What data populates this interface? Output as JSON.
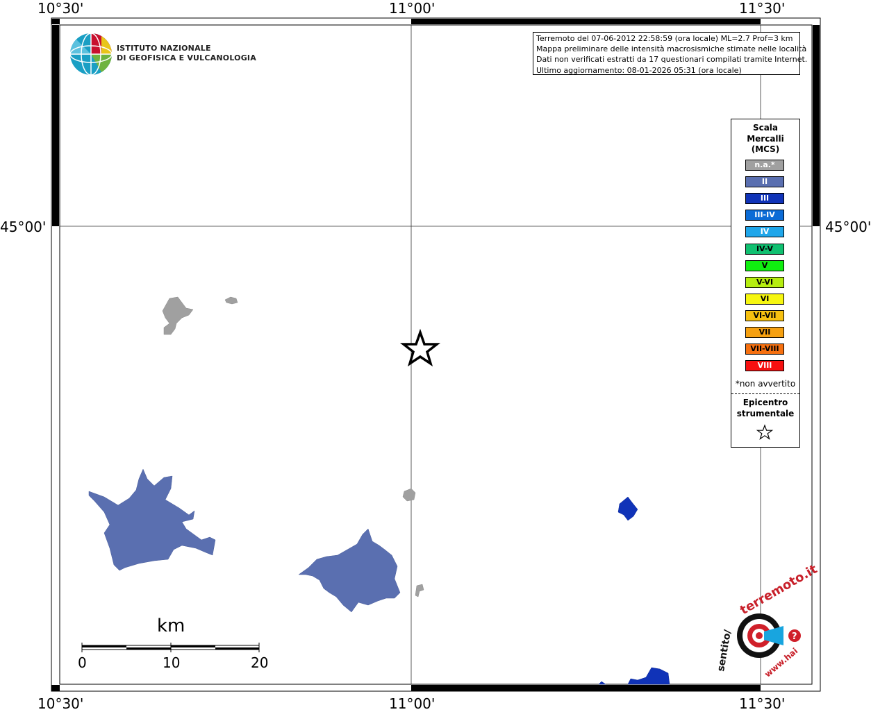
{
  "map": {
    "lon_ticks": [
      "10°30'",
      "11°00'",
      "11°30'"
    ],
    "lat_ticks": [
      "45°00'"
    ],
    "info_lines": [
      "Terremoto del 07-06-2012 22:58:59 (ora locale) ML=2.7 Prof=3 km",
      "Mappa preliminare delle intensità macrosismiche stimate nelle località",
      "Dati non verificati estratti da 17 questionari compilati tramite Internet.",
      "Ultimo aggiornamento: 08-01-2026 05:31 (ora locale)"
    ],
    "logo": {
      "line1": "ISTITUTO NAZIONALE",
      "line2": "DI GEOFISICA E VULCANOLOGIA"
    },
    "scale_bar": {
      "unit": "km",
      "labels": [
        "0",
        "10",
        "20"
      ]
    },
    "brand": {
      "main": "terremoto.it",
      "prefix": "sentito/",
      "www": "www.hai"
    }
  },
  "legend": {
    "title_lines": [
      "Scala",
      "Mercalli",
      "(MCS)"
    ],
    "classes": [
      {
        "label": "n.a.*",
        "color": "#a0a0a0"
      },
      {
        "label": "II",
        "color": "#5a6fb0"
      },
      {
        "label": "III",
        "color": "#1033b8"
      },
      {
        "label": "III-IV",
        "color": "#0b6bd6"
      },
      {
        "label": "IV",
        "color": "#1fa6ea"
      },
      {
        "label": "IV-V",
        "color": "#10c070"
      },
      {
        "label": "V",
        "color": "#10ee10"
      },
      {
        "label": "V-VI",
        "color": "#b6ee10"
      },
      {
        "label": "VI",
        "color": "#f6f610"
      },
      {
        "label": "VI-VII",
        "color": "#f6c010"
      },
      {
        "label": "VII",
        "color": "#f6a010"
      },
      {
        "label": "VII-VIII",
        "color": "#f67010"
      },
      {
        "label": "VIII",
        "color": "#f61010"
      }
    ],
    "note": "*non avvertito",
    "epicenter_lines": [
      "Epicentro",
      "strumentale"
    ]
  }
}
